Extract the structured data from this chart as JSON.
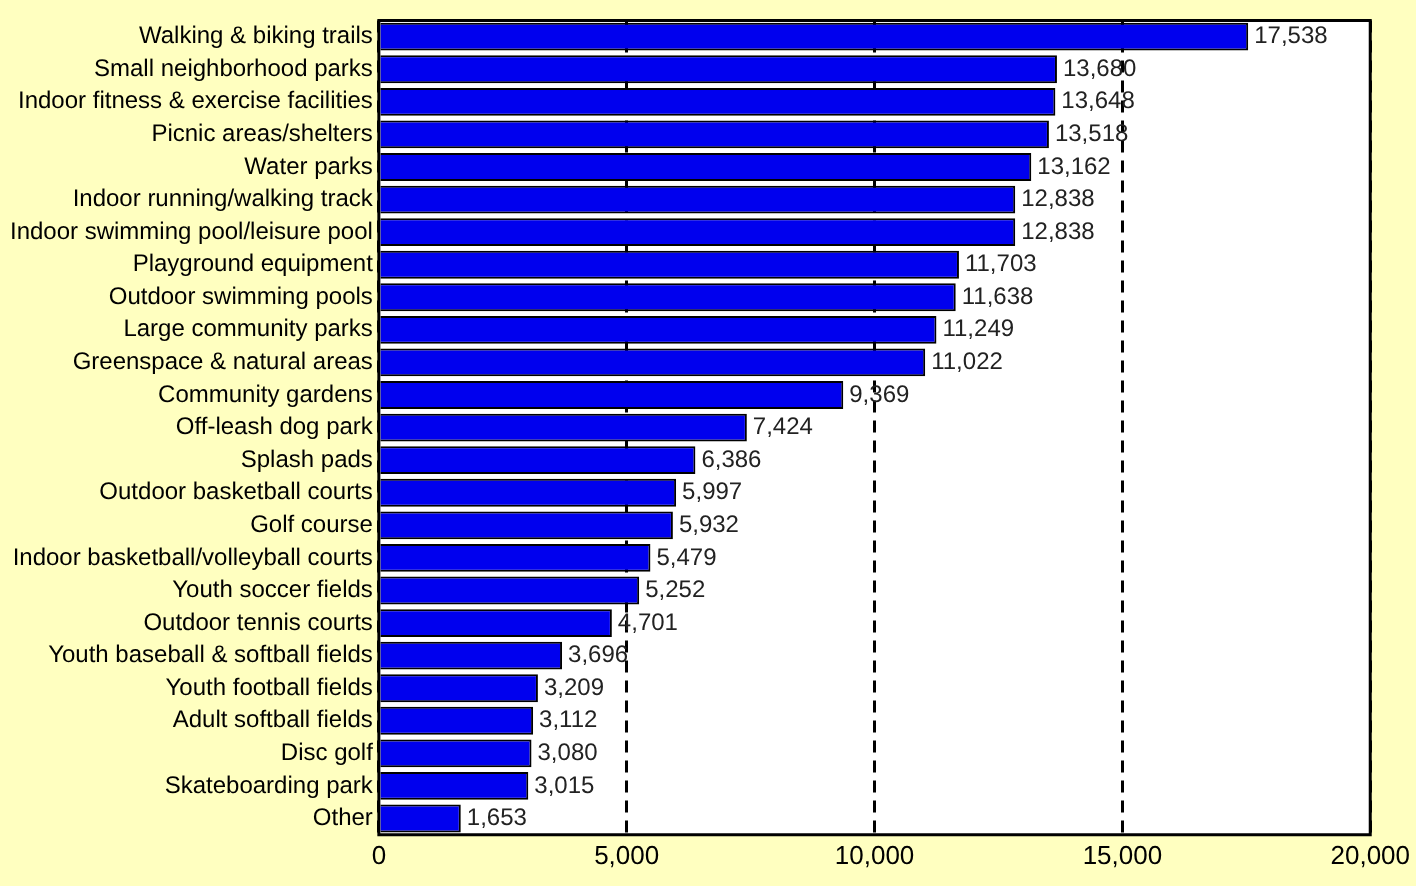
{
  "chart_data": {
    "type": "bar",
    "orientation": "horizontal",
    "categories": [
      "Walking & biking trails",
      "Small neighborhood parks",
      "Indoor fitness & exercise facilities",
      "Picnic areas/shelters",
      "Water parks",
      "Indoor running/walking track",
      "Indoor swimming pool/leisure pool",
      "Playground equipment",
      "Outdoor swimming pools",
      "Large community parks",
      "Greenspace & natural areas",
      "Community gardens",
      "Off-leash dog park",
      "Splash pads",
      "Outdoor basketball courts",
      "Golf course",
      "Indoor basketball/volleyball courts",
      "Youth soccer fields",
      "Outdoor tennis courts",
      "Youth baseball & softball fields",
      "Youth football fields",
      "Adult softball fields",
      "Disc golf",
      "Skateboarding park",
      "Other"
    ],
    "values": [
      17538,
      13680,
      13648,
      13518,
      13162,
      12838,
      12838,
      11703,
      11638,
      11249,
      11022,
      9369,
      7424,
      6386,
      5997,
      5932,
      5479,
      5252,
      4701,
      3696,
      3209,
      3112,
      3080,
      3015,
      1653
    ],
    "value_labels": [
      "17,538",
      "13,680",
      "13,648",
      "13,518",
      "13,162",
      "12,838",
      "12,838",
      "11,703",
      "11,638",
      "11,249",
      "11,022",
      "9,369",
      "7,424",
      "6,386",
      "5,997",
      "5,932",
      "5,479",
      "5,252",
      "4,701",
      "3,696",
      "3,209",
      "3,112",
      "3,080",
      "3,015",
      "1,653"
    ],
    "color": "#0000ee",
    "xlim": [
      0,
      20000
    ],
    "xticks": [
      {
        "value": 0,
        "label": "0"
      },
      {
        "value": 5000,
        "label": "5,000"
      },
      {
        "value": 10000,
        "label": "10,000"
      },
      {
        "value": 15000,
        "label": "15,000"
      },
      {
        "value": 20000,
        "label": "20,000"
      }
    ],
    "grid": "x",
    "line_style": "dashed",
    "legend": false
  }
}
